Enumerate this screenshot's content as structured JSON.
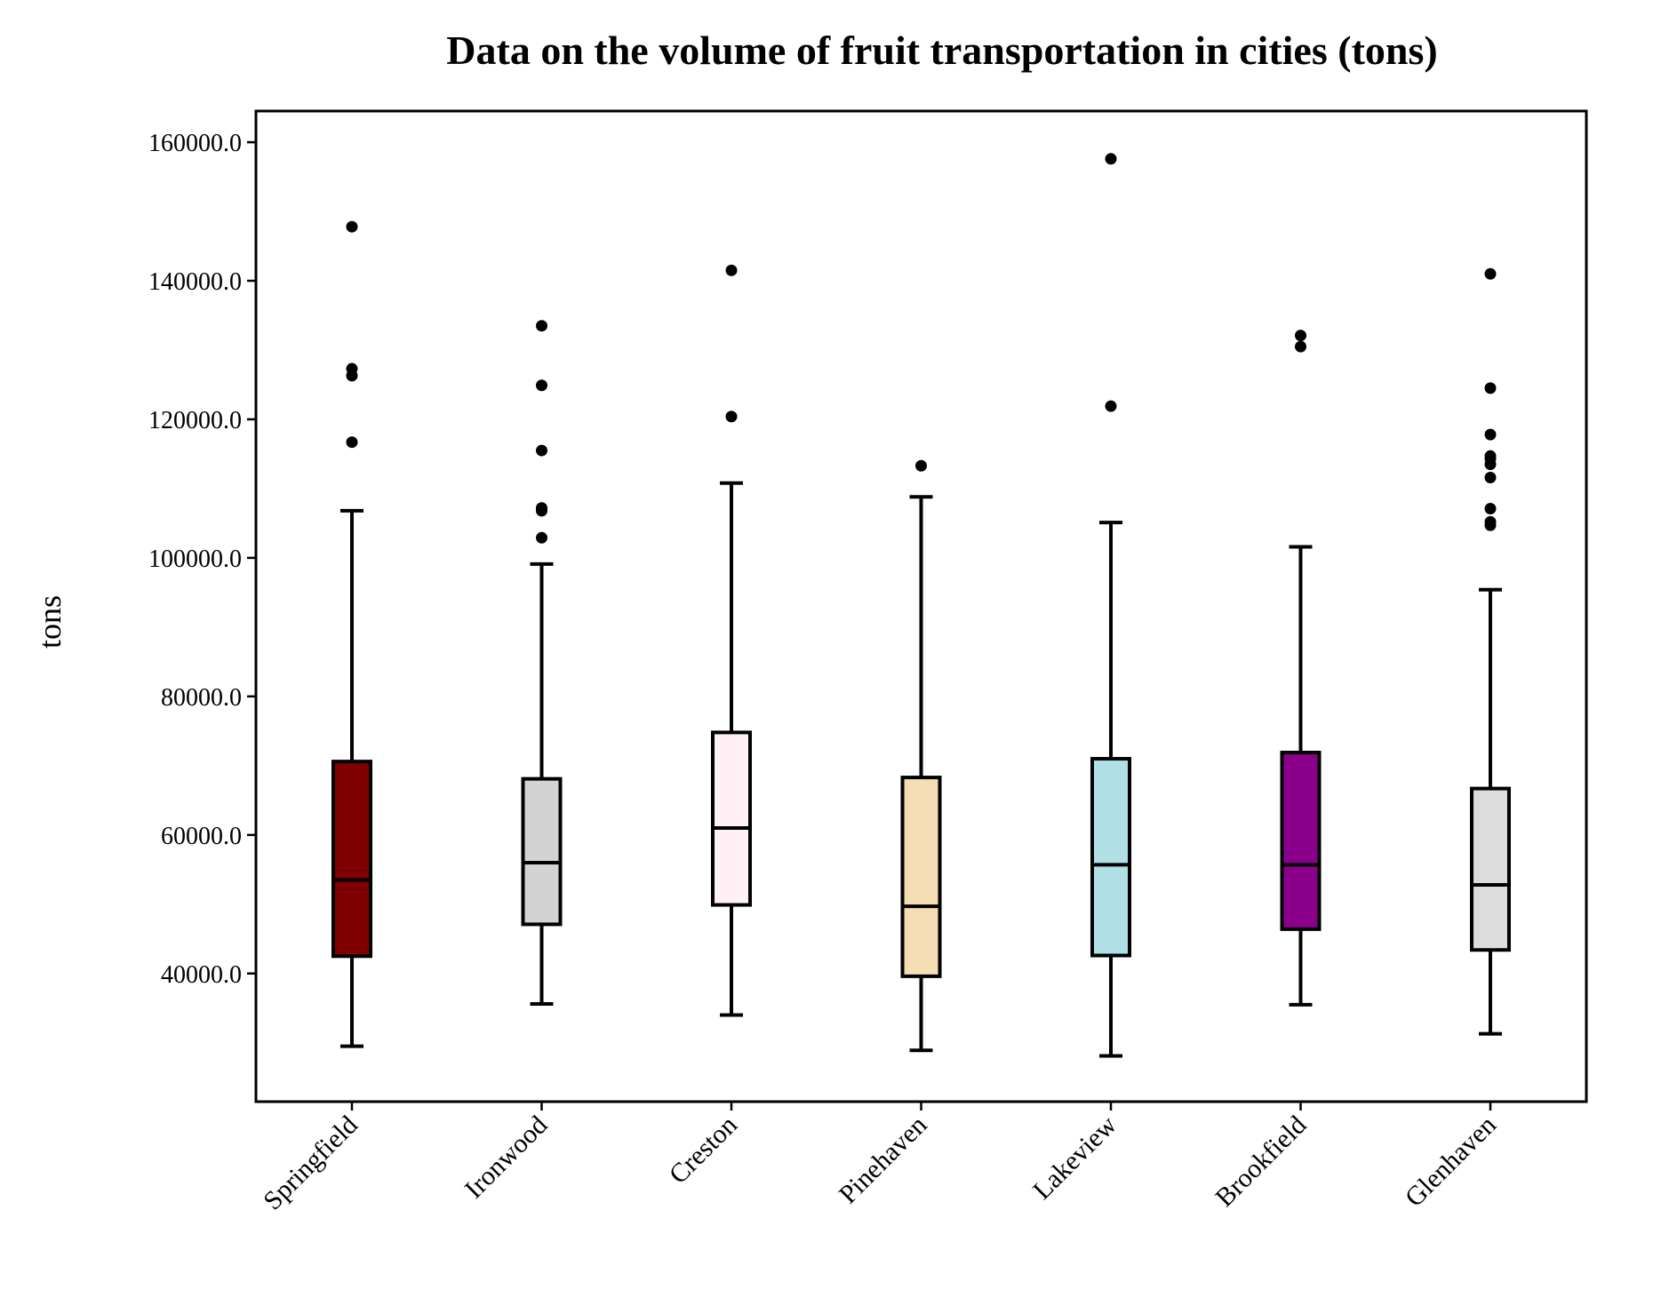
{
  "chart_data": {
    "type": "box",
    "title": "Data on the volume of fruit transportation in cities (tons)",
    "xlabel": "",
    "ylabel": "tons",
    "ylim": [
      21500,
      164500
    ],
    "yticks": [
      40000,
      60000,
      80000,
      100000,
      120000,
      140000,
      160000
    ],
    "ytick_labels": [
      "40000.0",
      "60000.0",
      "80000.0",
      "100000.0",
      "120000.0",
      "140000.0",
      "160000.0"
    ],
    "grid": false,
    "legend": "none",
    "categories": [
      "Springfield",
      "Ironwood",
      "Creston",
      "Pinehaven",
      "Lakeview",
      "Brookfield",
      "Glenhaven"
    ],
    "series": [
      {
        "category": "Springfield",
        "color": "#800000",
        "whisker_low": 29500,
        "q1": 42500,
        "median": 53500,
        "q3": 70600,
        "whisker_high": 106800,
        "outliers": [
          116700,
          126300,
          127300,
          147800
        ]
      },
      {
        "category": "Ironwood",
        "color": "#d3d3d3",
        "whisker_low": 35600,
        "q1": 47100,
        "median": 56000,
        "q3": 68100,
        "whisker_high": 99100,
        "outliers": [
          102900,
          106800,
          107200,
          115500,
          124900,
          133500
        ]
      },
      {
        "category": "Creston",
        "color": "#fff0f5",
        "whisker_low": 34000,
        "q1": 49900,
        "median": 61000,
        "q3": 74800,
        "whisker_high": 110800,
        "outliers": [
          120400,
          141500
        ]
      },
      {
        "category": "Pinehaven",
        "color": "#f5deb3",
        "whisker_low": 28900,
        "q1": 39600,
        "median": 49700,
        "q3": 68300,
        "whisker_high": 108800,
        "outliers": [
          113300
        ]
      },
      {
        "category": "Lakeview",
        "color": "#b0e0e6",
        "whisker_low": 28100,
        "q1": 42600,
        "median": 55700,
        "q3": 71000,
        "whisker_high": 105100,
        "outliers": [
          121900,
          157600
        ]
      },
      {
        "category": "Brookfield",
        "color": "#8b008b",
        "whisker_low": 35500,
        "q1": 46400,
        "median": 55700,
        "q3": 71900,
        "whisker_high": 101600,
        "outliers": [
          130500,
          132100
        ]
      },
      {
        "category": "Glenhaven",
        "color": "#dcdcdc",
        "whisker_low": 31300,
        "q1": 43400,
        "median": 52800,
        "q3": 66700,
        "whisker_high": 95400,
        "outliers": [
          104700,
          105200,
          107100,
          111600,
          113500,
          114300,
          114700,
          117800,
          124500,
          141000
        ]
      }
    ]
  }
}
